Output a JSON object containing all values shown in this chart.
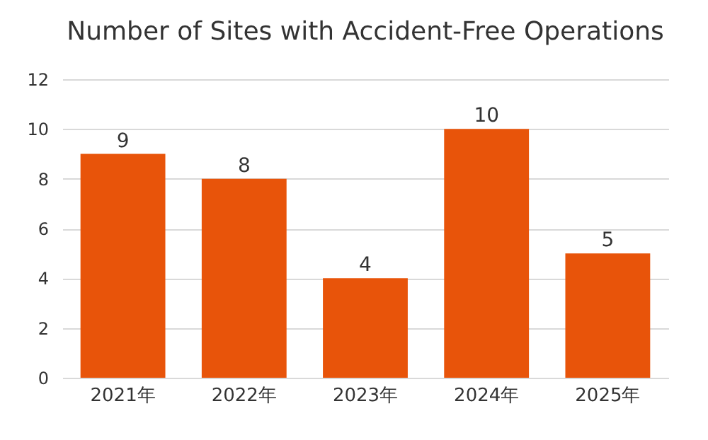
{
  "chart_data": {
    "type": "bar",
    "title": "Number of Sites with Accident-Free Operations",
    "categories": [
      "2021年",
      "2022年",
      "2023年",
      "2024年",
      "2025年"
    ],
    "values": [
      9,
      8,
      4,
      10,
      5
    ],
    "color": "#e8540a",
    "ylim": [
      0,
      12
    ],
    "yticks": [
      0,
      2,
      4,
      6,
      8,
      10,
      12
    ],
    "grid": "y",
    "data_labels": true
  }
}
